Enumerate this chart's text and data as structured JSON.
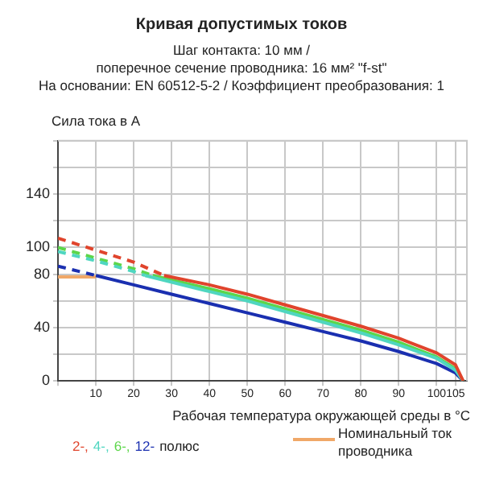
{
  "chart_data": {
    "type": "line",
    "title": "Кривая допустимых токов",
    "subtitle": "Шаг контакта: 10 мм /\nпоперечное сечение проводника: 16 мм² \"f-st\"\nНа основании: EN 60512-5-2 / Коэффициент преобразования: 1",
    "ylabel": "Сила тока в A",
    "xlabel": "Рабочая температура окружающей среды в °C",
    "legend_title": "полюс",
    "legend": "bottom",
    "grid": true,
    "marker": "none",
    "xlim": [
      0,
      108
    ],
    "xticks": [
      {
        "value": 0,
        "label": null
      },
      10,
      20,
      30,
      40,
      50,
      60,
      70,
      80,
      90,
      100,
      105
    ],
    "ylim": [
      0,
      180
    ],
    "yticks": [
      0,
      {
        "value": 20,
        "label": null
      },
      40,
      {
        "value": 60,
        "label": null
      },
      80,
      100,
      {
        "value": 120,
        "label": null
      },
      140,
      {
        "value": 160,
        "label": null
      },
      {
        "value": 180,
        "label": null
      }
    ],
    "series": [
      {
        "name": "2-,",
        "color": "#e0442c",
        "line_style": "solid",
        "x": [
          28,
          40,
          50,
          60,
          70,
          80,
          90,
          100,
          105,
          107
        ],
        "values": [
          79,
          72,
          65,
          57,
          49,
          41,
          32,
          21,
          12,
          0
        ]
      },
      {
        "color": "#e0442c",
        "line_style": "dashed",
        "x": [
          0,
          10,
          20,
          28
        ],
        "values": [
          107,
          98,
          89,
          79
        ]
      },
      {
        "name": "4-,",
        "color": "#4fd6c0",
        "line_style": "solid",
        "x": [
          23,
          40,
          50,
          60,
          70,
          80,
          90,
          100,
          105,
          107
        ],
        "values": [
          79,
          67,
          60,
          52,
          44,
          36,
          27,
          17,
          8,
          0
        ]
      },
      {
        "color": "#4fd6c0",
        "line_style": "dashed",
        "x": [
          0,
          10,
          20,
          23
        ],
        "values": [
          97,
          90,
          82,
          79
        ]
      },
      {
        "name": "6-,",
        "color": "#5cd64a",
        "line_style": "solid",
        "x": [
          25,
          40,
          50,
          60,
          70,
          80,
          90,
          100,
          105,
          107
        ],
        "values": [
          79,
          69,
          62,
          54,
          46,
          38,
          29,
          18,
          9,
          0
        ]
      },
      {
        "color": "#5cd64a",
        "line_style": "dashed",
        "x": [
          0,
          10,
          20,
          25
        ],
        "values": [
          100,
          92,
          84,
          79
        ]
      },
      {
        "name": "12-",
        "color": "#1a2fb0",
        "line_style": "solid",
        "x": [
          10,
          20,
          30,
          40,
          50,
          60,
          70,
          80,
          90,
          100,
          105,
          107
        ],
        "values": [
          79,
          72,
          65,
          58,
          51,
          44,
          37,
          30,
          22,
          13,
          6,
          0
        ]
      },
      {
        "color": "#1a2fb0",
        "line_style": "dashed",
        "x": [
          0,
          10
        ],
        "values": [
          86,
          79
        ]
      },
      {
        "name": "Номинальный ток проводника",
        "color": "#f0a868",
        "line_style": "solid",
        "x": [
          0,
          10
        ],
        "values": [
          78,
          78
        ]
      }
    ]
  }
}
